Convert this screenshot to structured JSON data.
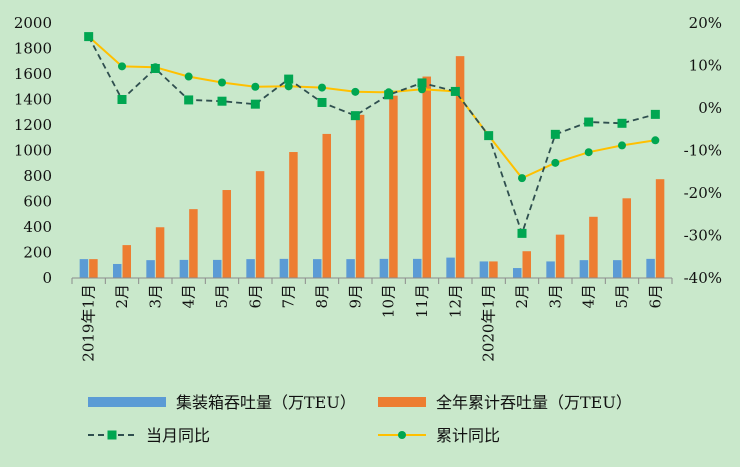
{
  "chart_data": {
    "type": "bar",
    "categories": [
      "2019年1月",
      "2月",
      "3月",
      "4月",
      "5月",
      "6月",
      "7月",
      "8月",
      "9月",
      "10月",
      "11月",
      "12月",
      "2020年1月",
      "2月",
      "3月",
      "4月",
      "5月",
      "6月"
    ],
    "series": [
      {
        "name": "集装箱吞吐量（万TEU）",
        "type": "bar",
        "axis": "left",
        "color": "#5b9bd5",
        "values": [
          148,
          110,
          140,
          142,
          142,
          148,
          150,
          148,
          148,
          150,
          150,
          160,
          130,
          78,
          130,
          140,
          140,
          150
        ]
      },
      {
        "name": "全年累计吞吐量（万TEU）",
        "type": "bar",
        "axis": "left",
        "color": "#ed7d31",
        "values": [
          148,
          258,
          398,
          540,
          690,
          838,
          988,
          1130,
          1280,
          1430,
          1580,
          1740,
          130,
          210,
          340,
          480,
          625,
          775
        ]
      },
      {
        "name": "当月同比",
        "type": "line",
        "axis": "right",
        "color": "#00a651",
        "line_color": "#2f4f4f",
        "dashed": true,
        "values": [
          16.8,
          2.0,
          9.3,
          1.9,
          1.6,
          0.9,
          6.8,
          1.3,
          -1.8,
          3.1,
          5.9,
          3.9,
          -6.5,
          -29.5,
          -6.2,
          -3.3,
          -3.6,
          -1.5
        ]
      },
      {
        "name": "累计同比",
        "type": "line",
        "axis": "right",
        "color": "#00a651",
        "line_color": "#ffc000",
        "dashed": false,
        "values": [
          16.8,
          9.8,
          9.6,
          7.4,
          6.0,
          5.0,
          5.1,
          4.8,
          3.8,
          3.7,
          4.4,
          3.9,
          -6.5,
          -16.5,
          -12.9,
          -10.4,
          -8.8,
          -7.6
        ]
      }
    ],
    "y_left": {
      "min": 0,
      "max": 2000,
      "step": 200,
      "ticks": [
        "0",
        "200",
        "400",
        "600",
        "800",
        "1000",
        "1200",
        "1400",
        "1600",
        "1800",
        "2000"
      ]
    },
    "y_right": {
      "min": -40,
      "max": 20,
      "step": 10,
      "ticks": [
        "-40%",
        "-30%",
        "-20%",
        "-10%",
        "0%",
        "10%",
        "20%"
      ]
    },
    "grid": false,
    "legend_position": "bottom"
  }
}
